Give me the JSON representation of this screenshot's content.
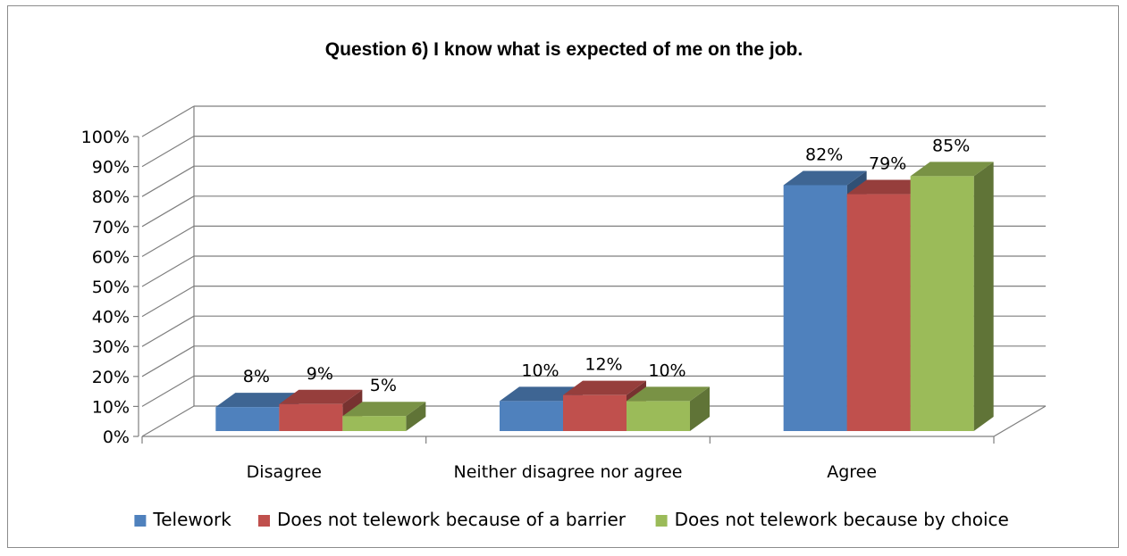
{
  "chart_data": {
    "type": "bar",
    "title": "Question 6) I know what is expected of me on the job.",
    "categories": [
      "Disagree",
      "Neither disagree nor agree",
      "Agree"
    ],
    "series": [
      {
        "name": "Telework",
        "values": [
          8,
          10,
          82
        ],
        "labels": [
          "8%",
          "10%",
          "82%"
        ],
        "color": "#4f81bd"
      },
      {
        "name": "Does not telework because of a barrier",
        "values": [
          9,
          12,
          79
        ],
        "labels": [
          "9%",
          "12%",
          "79%"
        ],
        "color": "#c0504d"
      },
      {
        "name": "Does not telework because by choice",
        "values": [
          5,
          10,
          85
        ],
        "labels": [
          "5%",
          "10%",
          "85%"
        ],
        "color": "#9bbb59"
      }
    ],
    "yticks": [
      "0%",
      "10%",
      "20%",
      "30%",
      "40%",
      "50%",
      "60%",
      "70%",
      "80%",
      "90%",
      "100%"
    ],
    "ylim": [
      0,
      100
    ],
    "xlabel": "",
    "ylabel": "",
    "grid": true,
    "legend_position": "bottom",
    "style": "3d-clustered-column"
  }
}
